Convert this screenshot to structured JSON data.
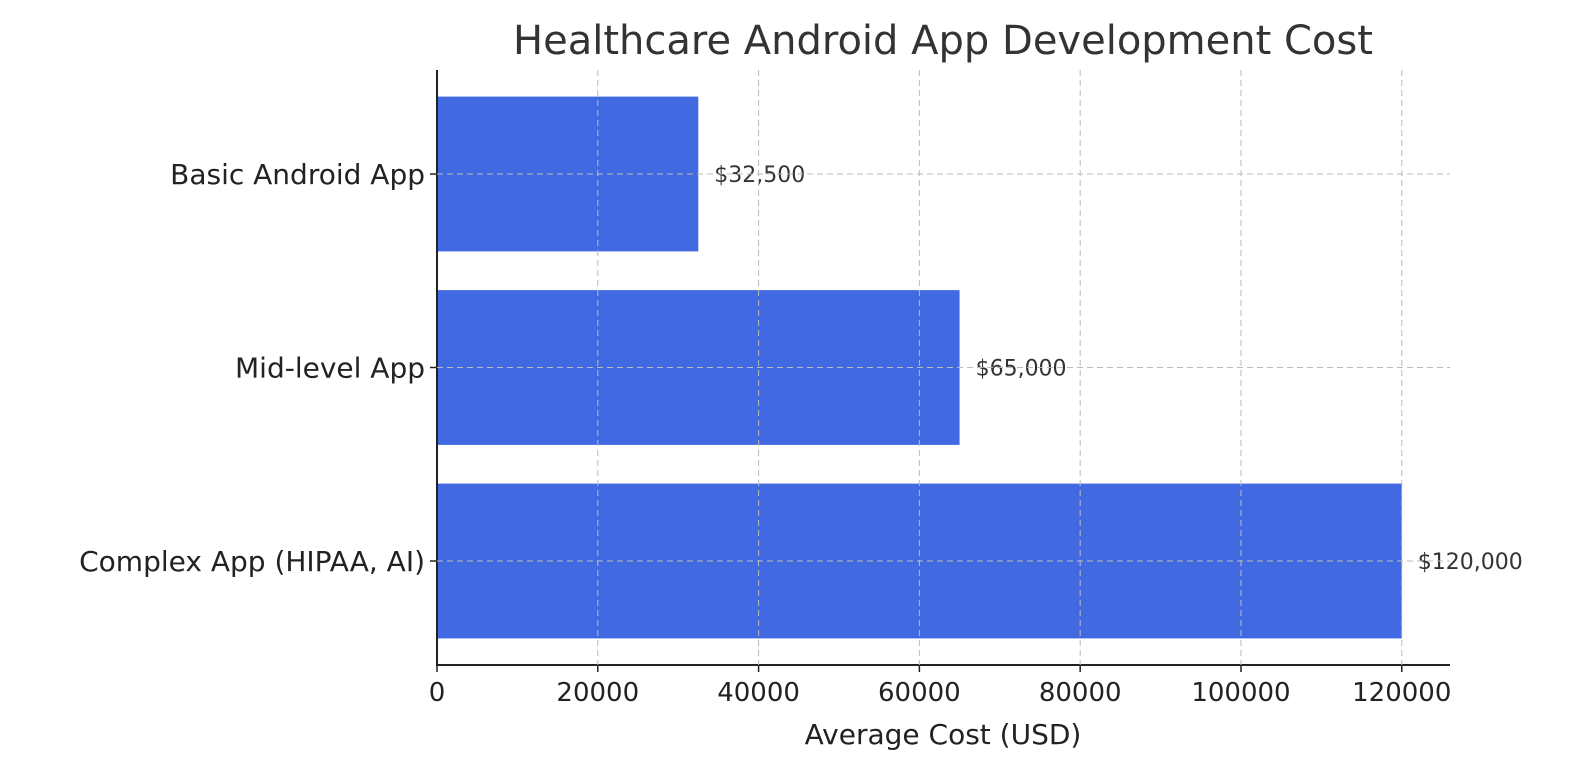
{
  "chart_data": {
    "type": "bar",
    "orientation": "horizontal",
    "title": "Healthcare Android App Development Cost",
    "xlabel": "Average Cost (USD)",
    "ylabel": "",
    "categories": [
      "Basic Android App",
      "Mid-level App",
      "Complex App (HIPAA, AI)"
    ],
    "values": [
      32500,
      65000,
      120000
    ],
    "data_labels": [
      "$32,500",
      "$65,000",
      "$120,000"
    ],
    "xlim": [
      0,
      126000
    ],
    "xticks": [
      0,
      20000,
      40000,
      60000,
      80000,
      100000,
      120000
    ],
    "xtick_labels": [
      "0",
      "20000",
      "40000",
      "60000",
      "80000",
      "100000",
      "120000"
    ],
    "grid": true,
    "bar_color": "#4169E1",
    "legend": "none"
  }
}
